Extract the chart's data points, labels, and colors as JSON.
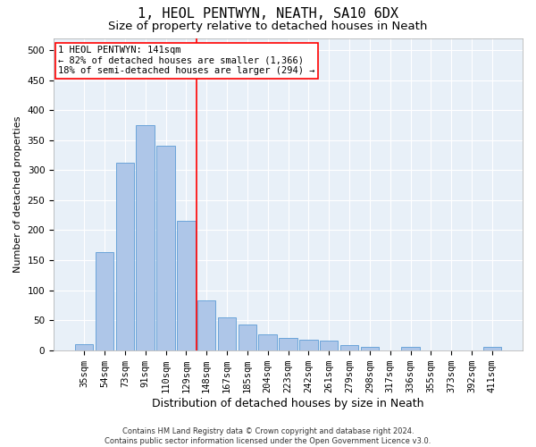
{
  "title": "1, HEOL PENTWYN, NEATH, SA10 6DX",
  "subtitle": "Size of property relative to detached houses in Neath",
  "xlabel": "Distribution of detached houses by size in Neath",
  "ylabel": "Number of detached properties",
  "categories": [
    "35sqm",
    "54sqm",
    "73sqm",
    "91sqm",
    "110sqm",
    "129sqm",
    "148sqm",
    "167sqm",
    "185sqm",
    "204sqm",
    "223sqm",
    "242sqm",
    "261sqm",
    "279sqm",
    "298sqm",
    "317sqm",
    "336sqm",
    "355sqm",
    "373sqm",
    "392sqm",
    "411sqm"
  ],
  "values": [
    10,
    163,
    312,
    375,
    340,
    215,
    83,
    55,
    43,
    26,
    20,
    18,
    16,
    9,
    5,
    0,
    5,
    0,
    0,
    0,
    5
  ],
  "bar_color": "#aec6e8",
  "bar_edge_color": "#5b9bd5",
  "vline_index": 6,
  "vline_color": "red",
  "annotation_line1": "1 HEOL PENTWYN: 141sqm",
  "annotation_line2": "← 82% of detached houses are smaller (1,366)",
  "annotation_line3": "18% of semi-detached houses are larger (294) →",
  "annotation_box_color": "white",
  "annotation_box_edge_color": "red",
  "ylim": [
    0,
    520
  ],
  "yticks": [
    0,
    50,
    100,
    150,
    200,
    250,
    300,
    350,
    400,
    450,
    500
  ],
  "background_color": "#e8f0f8",
  "grid_color": "white",
  "footer": "Contains HM Land Registry data © Crown copyright and database right 2024.\nContains public sector information licensed under the Open Government Licence v3.0.",
  "title_fontsize": 11,
  "subtitle_fontsize": 9.5,
  "xlabel_fontsize": 9,
  "ylabel_fontsize": 8,
  "tick_fontsize": 7.5,
  "annotation_fontsize": 7.5,
  "footer_fontsize": 6
}
